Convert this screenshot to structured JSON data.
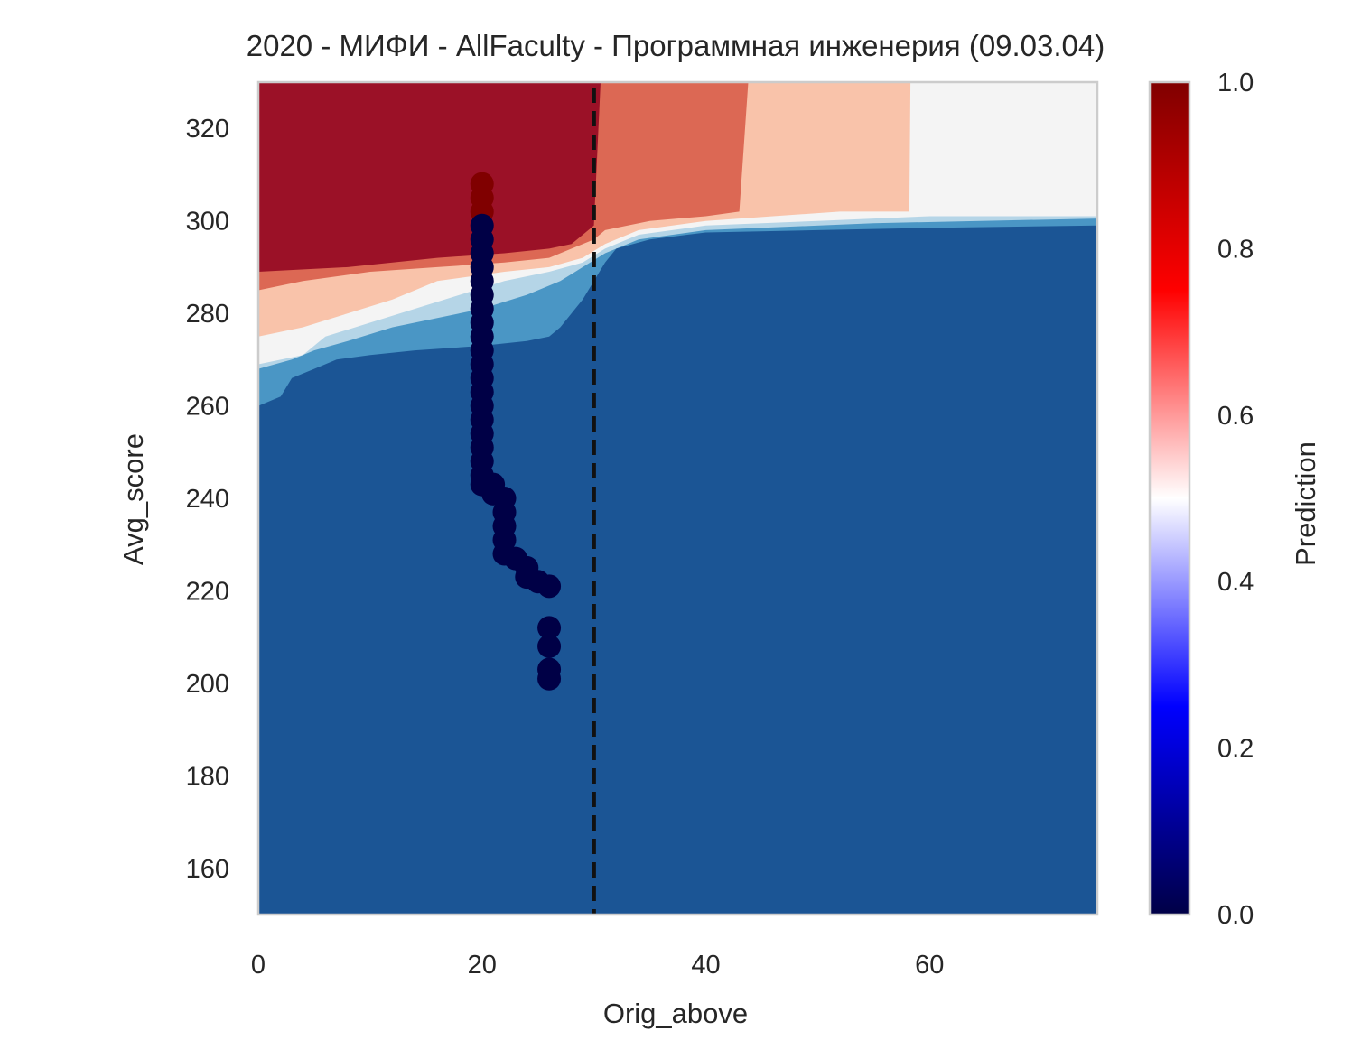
{
  "chart_data": {
    "type": "heatmap",
    "title": "2020 - МИФИ - AllFaculty - Программная инженерия (09.03.04)",
    "xlabel": "Orig_above",
    "ylabel": "Avg_score",
    "xlim": [
      0,
      75
    ],
    "ylim": [
      150,
      330
    ],
    "xticks": [
      "0",
      "20",
      "40",
      "60"
    ],
    "xtick_values": [
      0,
      20,
      40,
      60
    ],
    "yticks": [
      "160",
      "180",
      "200",
      "220",
      "240",
      "260",
      "280",
      "300",
      "320"
    ],
    "ytick_values": [
      160,
      180,
      200,
      220,
      240,
      260,
      280,
      300,
      320
    ],
    "grid": false,
    "threshold_line": {
      "x": 30,
      "style": "dashed",
      "color": "#111111"
    },
    "colorbar": {
      "label": "Prediction",
      "ticks": [
        "0.0",
        "0.2",
        "0.4",
        "0.6",
        "0.8",
        "1.0"
      ],
      "tick_values": [
        0.0,
        0.2,
        0.4,
        0.6,
        0.8,
        1.0
      ],
      "range": [
        0.0,
        1.0
      ],
      "colormap": "seismic"
    },
    "contour_level_colors": {
      "blue_dark": "#1b5595",
      "blue_mid": "#4a96c5",
      "blue_light": "#b5d5e7",
      "white": "#f4f4f4",
      "salmon_light": "#f9c3aa",
      "salmon": "#dc6854",
      "red_dark": "#9b1127"
    },
    "point_colors": {
      "class_0": "#000046",
      "class_1": "#800000"
    },
    "points": [
      {
        "x": 20,
        "y": 308,
        "p": 1
      },
      {
        "x": 20,
        "y": 305,
        "p": 1
      },
      {
        "x": 20,
        "y": 302,
        "p": 1
      },
      {
        "x": 20,
        "y": 299,
        "p": 0
      },
      {
        "x": 20,
        "y": 296,
        "p": 0
      },
      {
        "x": 20,
        "y": 293,
        "p": 0
      },
      {
        "x": 20,
        "y": 290,
        "p": 0
      },
      {
        "x": 20,
        "y": 287,
        "p": 0
      },
      {
        "x": 20,
        "y": 284,
        "p": 0
      },
      {
        "x": 20,
        "y": 281,
        "p": 0
      },
      {
        "x": 20,
        "y": 278,
        "p": 0
      },
      {
        "x": 20,
        "y": 275,
        "p": 0
      },
      {
        "x": 20,
        "y": 272,
        "p": 0
      },
      {
        "x": 20,
        "y": 269,
        "p": 0
      },
      {
        "x": 20,
        "y": 266,
        "p": 0
      },
      {
        "x": 20,
        "y": 263,
        "p": 0
      },
      {
        "x": 20,
        "y": 260,
        "p": 0
      },
      {
        "x": 20,
        "y": 257,
        "p": 0
      },
      {
        "x": 20,
        "y": 254,
        "p": 0
      },
      {
        "x": 20,
        "y": 251,
        "p": 0
      },
      {
        "x": 20,
        "y": 248,
        "p": 0
      },
      {
        "x": 20,
        "y": 245,
        "p": 0
      },
      {
        "x": 20,
        "y": 243,
        "p": 0
      },
      {
        "x": 21,
        "y": 243,
        "p": 0
      },
      {
        "x": 21,
        "y": 241,
        "p": 0
      },
      {
        "x": 22,
        "y": 240,
        "p": 0
      },
      {
        "x": 22,
        "y": 237,
        "p": 0
      },
      {
        "x": 22,
        "y": 234,
        "p": 0
      },
      {
        "x": 22,
        "y": 231,
        "p": 0
      },
      {
        "x": 22,
        "y": 228,
        "p": 0
      },
      {
        "x": 23,
        "y": 227,
        "p": 0
      },
      {
        "x": 24,
        "y": 225,
        "p": 0
      },
      {
        "x": 24,
        "y": 223,
        "p": 0
      },
      {
        "x": 25,
        "y": 222,
        "p": 0
      },
      {
        "x": 26,
        "y": 221,
        "p": 0
      },
      {
        "x": 26,
        "y": 212,
        "p": 0
      },
      {
        "x": 26,
        "y": 208,
        "p": 0
      },
      {
        "x": 26,
        "y": 203,
        "p": 0
      },
      {
        "x": 26,
        "y": 201,
        "p": 0
      }
    ]
  }
}
